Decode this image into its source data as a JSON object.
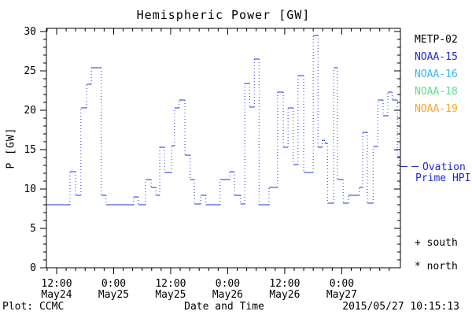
{
  "title": "Hemispheric Power [GW]",
  "footer": {
    "plot_credit": "Plot: CCMC",
    "timestamp": "2015/05/27 10:15:13"
  },
  "legend": {
    "items": [
      {
        "label": "METP-02",
        "color": "#000000"
      },
      {
        "label": "NOAA-15",
        "color": "#1e28e0"
      },
      {
        "label": "NOAA-16",
        "color": "#2fb8fa"
      },
      {
        "label": "NOAA-18",
        "color": "#5cdc8c"
      },
      {
        "label": "NOAA-19",
        "color": "#ffa41e"
      }
    ]
  },
  "ovation": {
    "line1": "Ovation",
    "line2": "Prime HPI",
    "color": "#1e28e0"
  },
  "markers": {
    "south": "+ south",
    "north": "* north"
  },
  "chart_data": {
    "type": "line",
    "subtype": "dotted-step",
    "title": "Hemispheric Power [GW]",
    "xlabel": "Date and Time",
    "ylabel": "P [GW]",
    "ylim": [
      0,
      30
    ],
    "yticks": [
      0,
      5,
      10,
      15,
      20,
      25,
      30
    ],
    "y_minor_step": 1,
    "x_unit": "hours since 2015-05-24 00:00 UT",
    "xlim": [
      9.85,
      84.35
    ],
    "x_minor_step": 2,
    "xticks": [
      {
        "t": 12,
        "time": "12:00",
        "date": "May24"
      },
      {
        "t": 24,
        "time": "0:00",
        "date": "May25"
      },
      {
        "t": 36,
        "time": "12:00",
        "date": "May25"
      },
      {
        "t": 48,
        "time": "0:00",
        "date": "May26"
      },
      {
        "t": 60,
        "time": "12:00",
        "date": "May26"
      },
      {
        "t": 72,
        "time": "0:00",
        "date": "May27"
      }
    ],
    "grid": false,
    "legend_position": "right-outside",
    "series": [
      {
        "name": "Ovation Prime HPI",
        "color": "#2233dd",
        "points": [
          [
            9.9,
            8.0
          ],
          [
            14.8,
            12.2
          ],
          [
            16.0,
            9.2
          ],
          [
            17.1,
            20.3
          ],
          [
            18.3,
            23.3
          ],
          [
            19.3,
            25.4
          ],
          [
            21.4,
            9.2
          ],
          [
            22.4,
            8.0
          ],
          [
            28.2,
            9.0
          ],
          [
            29.2,
            8.0
          ],
          [
            30.7,
            11.2
          ],
          [
            31.9,
            10.2
          ],
          [
            32.9,
            9.2
          ],
          [
            33.7,
            15.3
          ],
          [
            34.7,
            12.1
          ],
          [
            36.2,
            15.5
          ],
          [
            36.8,
            20.3
          ],
          [
            37.8,
            21.3
          ],
          [
            39.0,
            14.3
          ],
          [
            40.1,
            11.2
          ],
          [
            41.0,
            8.1
          ],
          [
            42.3,
            9.2
          ],
          [
            43.4,
            8.0
          ],
          [
            46.4,
            11.2
          ],
          [
            48.4,
            12.2
          ],
          [
            49.4,
            9.2
          ],
          [
            50.7,
            8.1
          ],
          [
            51.6,
            23.4
          ],
          [
            52.6,
            20.4
          ],
          [
            53.6,
            26.5
          ],
          [
            54.6,
            8.0
          ],
          [
            56.7,
            10.2
          ],
          [
            58.5,
            22.3
          ],
          [
            59.7,
            15.3
          ],
          [
            60.7,
            20.3
          ],
          [
            61.8,
            13.1
          ],
          [
            62.8,
            24.4
          ],
          [
            64.0,
            12.1
          ],
          [
            66.0,
            29.5
          ],
          [
            67.0,
            15.3
          ],
          [
            67.9,
            16.2
          ],
          [
            68.4,
            15.8
          ],
          [
            69.0,
            8.2
          ],
          [
            70.3,
            25.4
          ],
          [
            71.1,
            11.2
          ],
          [
            72.3,
            8.2
          ],
          [
            73.4,
            9.2
          ],
          [
            75.7,
            10.2
          ],
          [
            76.4,
            17.2
          ],
          [
            77.4,
            8.2
          ],
          [
            78.6,
            15.4
          ],
          [
            79.6,
            21.3
          ],
          [
            80.7,
            19.3
          ],
          [
            81.7,
            22.3
          ],
          [
            82.6,
            21.3
          ],
          [
            83.7,
            14.1
          ],
          [
            84.2,
            10.2
          ]
        ]
      }
    ]
  }
}
